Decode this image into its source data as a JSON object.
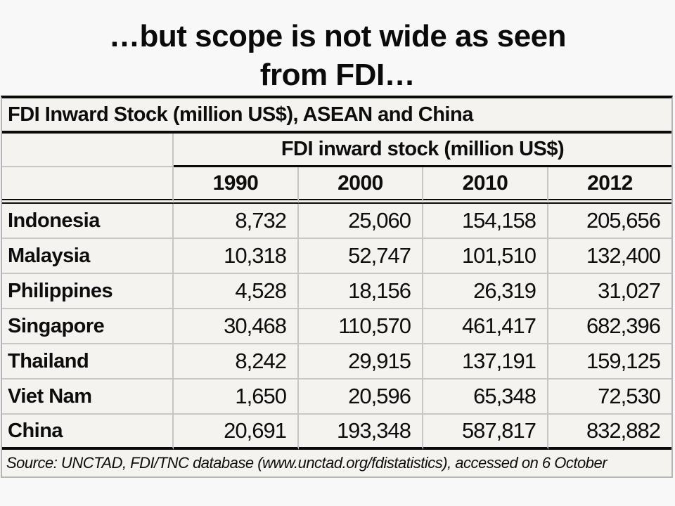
{
  "slide": {
    "title_line1": "…but scope is not wide as seen",
    "title_line2": "from FDI…"
  },
  "table": {
    "caption": "FDI Inward Stock (million US$), ASEAN and China",
    "group_header": "FDI inward stock (million US$)",
    "years": [
      "1990",
      "2000",
      "2010",
      "2012"
    ],
    "rows": [
      {
        "country": "Indonesia",
        "values": [
          "8,732",
          "25,060",
          "154,158",
          "205,656"
        ]
      },
      {
        "country": "Malaysia",
        "values": [
          "10,318",
          "52,747",
          "101,510",
          "132,400"
        ]
      },
      {
        "country": "Philippines",
        "values": [
          "4,528",
          "18,156",
          "26,319",
          "31,027"
        ]
      },
      {
        "country": "Singapore",
        "values": [
          "30,468",
          "110,570",
          "461,417",
          "682,396"
        ]
      },
      {
        "country": "Thailand",
        "values": [
          "8,242",
          "29,915",
          "137,191",
          "159,125"
        ]
      },
      {
        "country": "Viet Nam",
        "values": [
          "1,650",
          "20,596",
          "65,348",
          "72,530"
        ]
      },
      {
        "country": "China",
        "values": [
          "20,691",
          "193,348",
          "587,817",
          "832,882"
        ]
      }
    ],
    "source": "Source: UNCTAD, FDI/TNC database (www.unctad.org/fdistatistics), accessed on 6 October"
  },
  "colors": {
    "slide_background": "#f8f8f8",
    "table_background": "#f4f3ef",
    "text": "#0a0a0a",
    "grid_line": "#c6c6c6",
    "heavy_line": "#0a0a0a"
  },
  "chart_data": {
    "type": "table",
    "title": "FDI Inward Stock (million US$), ASEAN and China",
    "group_header": "FDI inward stock (million US$)",
    "columns": [
      "1990",
      "2000",
      "2010",
      "2012"
    ],
    "rows": [
      {
        "label": "Indonesia",
        "values": [
          8732,
          25060,
          154158,
          205656
        ]
      },
      {
        "label": "Malaysia",
        "values": [
          10318,
          52747,
          101510,
          132400
        ]
      },
      {
        "label": "Philippines",
        "values": [
          4528,
          18156,
          26319,
          31027
        ]
      },
      {
        "label": "Singapore",
        "values": [
          30468,
          110570,
          461417,
          682396
        ]
      },
      {
        "label": "Thailand",
        "values": [
          8242,
          29915,
          137191,
          159125
        ]
      },
      {
        "label": "Viet Nam",
        "values": [
          1650,
          20596,
          65348,
          72530
        ]
      },
      {
        "label": "China",
        "values": [
          20691,
          193348,
          587817,
          832882
        ]
      }
    ],
    "source": "Source: UNCTAD, FDI/TNC database (www.unctad.org/fdistatistics), accessed on 6 October"
  }
}
